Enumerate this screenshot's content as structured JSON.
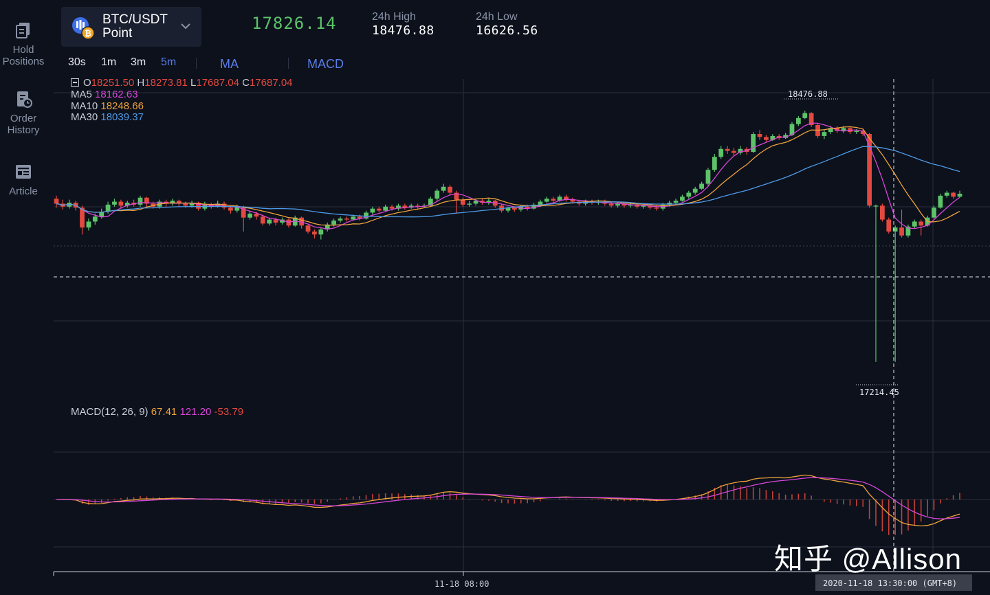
{
  "nav": [
    {
      "label": "Hold\nPositions",
      "icon": "hold-positions-icon"
    },
    {
      "label": "Order\nHistory",
      "icon": "order-history-icon"
    },
    {
      "label": "Article",
      "icon": "article-icon"
    }
  ],
  "symbol": {
    "name": "BTC/USDT",
    "sub": "Point"
  },
  "last_price": "17826.14",
  "stats": {
    "high_label": "24h High",
    "high_value": "18476.88",
    "low_label": "24h Low",
    "low_value": "16626.56"
  },
  "timeframes": [
    {
      "label": "30s",
      "active": false
    },
    {
      "label": "1m",
      "active": false
    },
    {
      "label": "3m",
      "active": false
    },
    {
      "label": "5m",
      "active": true
    }
  ],
  "indicators": [
    "MA",
    "MACD"
  ],
  "ohlc": {
    "o_label": "O",
    "o": "18251.50",
    "h_label": "H",
    "h": "18273.81",
    "l_label": "L",
    "l": "17687.04",
    "c_label": "C",
    "c": "17687.04"
  },
  "ma": [
    {
      "label": "MA5",
      "value": "18162.63",
      "color": "#d846d8"
    },
    {
      "label": "MA10",
      "value": "18248.66",
      "color": "#f0a23c"
    },
    {
      "label": "MA30",
      "value": "18039.37",
      "color": "#4f9ae6"
    }
  ],
  "macd": {
    "label": "MACD(12, 26, 9)",
    "dif": "67.41",
    "dea": "121.20",
    "hist": "-53.79"
  },
  "price_markers": {
    "high": "18476.88",
    "low": "17214.45"
  },
  "time_axis": {
    "tick_label": "11-18 08:00",
    "crosshair_label": "2020-11-18 13:30:00 (GMT+8)"
  },
  "watermark": "知乎 @Allison",
  "colors": {
    "up": "#5cc369",
    "down": "#e3493f",
    "ma5": "#d846d8",
    "ma10": "#f0a23c",
    "ma30": "#4f9ae6",
    "accent": "#5b7de8"
  },
  "chart_data": {
    "type": "candlestick",
    "interval": "5m",
    "price_range": [
      17100,
      18550
    ],
    "candles": [
      {
        "o": 18035,
        "c": 18010,
        "h": 18050,
        "l": 17990
      },
      {
        "o": 18010,
        "c": 17995,
        "h": 18030,
        "l": 17980
      },
      {
        "o": 17995,
        "c": 18015,
        "h": 18030,
        "l": 17985
      },
      {
        "o": 18015,
        "c": 17990,
        "h": 18025,
        "l": 17975
      },
      {
        "o": 17990,
        "c": 17890,
        "h": 18000,
        "l": 17855
      },
      {
        "o": 17890,
        "c": 17920,
        "h": 17935,
        "l": 17875
      },
      {
        "o": 17920,
        "c": 17945,
        "h": 17960,
        "l": 17905
      },
      {
        "o": 17945,
        "c": 17970,
        "h": 17985,
        "l": 17935
      },
      {
        "o": 17970,
        "c": 18005,
        "h": 18020,
        "l": 17960
      },
      {
        "o": 18005,
        "c": 18020,
        "h": 18035,
        "l": 17995
      },
      {
        "o": 18020,
        "c": 18000,
        "h": 18030,
        "l": 17985
      },
      {
        "o": 18000,
        "c": 18015,
        "h": 18025,
        "l": 17990
      },
      {
        "o": 18015,
        "c": 18005,
        "h": 18030,
        "l": 17995
      },
      {
        "o": 18005,
        "c": 18040,
        "h": 18050,
        "l": 17995
      },
      {
        "o": 18040,
        "c": 18010,
        "h": 18045,
        "l": 17995
      },
      {
        "o": 18010,
        "c": 17995,
        "h": 18020,
        "l": 17985
      },
      {
        "o": 17995,
        "c": 18020,
        "h": 18030,
        "l": 17985
      },
      {
        "o": 18020,
        "c": 18010,
        "h": 18030,
        "l": 17995
      },
      {
        "o": 18010,
        "c": 18025,
        "h": 18035,
        "l": 18000
      },
      {
        "o": 18025,
        "c": 18010,
        "h": 18030,
        "l": 17995
      },
      {
        "o": 18010,
        "c": 18000,
        "h": 18020,
        "l": 17990
      },
      {
        "o": 18000,
        "c": 18015,
        "h": 18025,
        "l": 17990
      },
      {
        "o": 18015,
        "c": 17985,
        "h": 18020,
        "l": 17975
      },
      {
        "o": 17985,
        "c": 18005,
        "h": 18020,
        "l": 17975
      },
      {
        "o": 18005,
        "c": 17995,
        "h": 18015,
        "l": 17985
      },
      {
        "o": 17995,
        "c": 18010,
        "h": 18025,
        "l": 17990
      },
      {
        "o": 18010,
        "c": 17990,
        "h": 18020,
        "l": 17980
      },
      {
        "o": 17990,
        "c": 17975,
        "h": 18000,
        "l": 17960
      },
      {
        "o": 17975,
        "c": 17995,
        "h": 18005,
        "l": 17965
      },
      {
        "o": 17995,
        "c": 17940,
        "h": 18000,
        "l": 17870
      },
      {
        "o": 17940,
        "c": 17960,
        "h": 17975,
        "l": 17930
      },
      {
        "o": 17960,
        "c": 17945,
        "h": 17970,
        "l": 17930
      },
      {
        "o": 17945,
        "c": 17910,
        "h": 17955,
        "l": 17900
      },
      {
        "o": 17910,
        "c": 17930,
        "h": 17940,
        "l": 17900
      },
      {
        "o": 17930,
        "c": 17915,
        "h": 17940,
        "l": 17900
      },
      {
        "o": 17915,
        "c": 17930,
        "h": 17940,
        "l": 17905
      },
      {
        "o": 17930,
        "c": 17900,
        "h": 17935,
        "l": 17890
      },
      {
        "o": 17900,
        "c": 17940,
        "h": 17950,
        "l": 17895
      },
      {
        "o": 17940,
        "c": 17900,
        "h": 17945,
        "l": 17885
      },
      {
        "o": 17900,
        "c": 17870,
        "h": 17905,
        "l": 17860
      },
      {
        "o": 17870,
        "c": 17855,
        "h": 17880,
        "l": 17835
      },
      {
        "o": 17855,
        "c": 17880,
        "h": 17890,
        "l": 17830
      },
      {
        "o": 17880,
        "c": 17905,
        "h": 17915,
        "l": 17870
      },
      {
        "o": 17905,
        "c": 17925,
        "h": 17935,
        "l": 17895
      },
      {
        "o": 17925,
        "c": 17935,
        "h": 17945,
        "l": 17915
      },
      {
        "o": 17935,
        "c": 17930,
        "h": 17945,
        "l": 17920
      },
      {
        "o": 17930,
        "c": 17945,
        "h": 17955,
        "l": 17925
      },
      {
        "o": 17945,
        "c": 17935,
        "h": 17955,
        "l": 17925
      },
      {
        "o": 17935,
        "c": 17965,
        "h": 17975,
        "l": 17930
      },
      {
        "o": 17965,
        "c": 17985,
        "h": 17995,
        "l": 17955
      },
      {
        "o": 17985,
        "c": 17975,
        "h": 17995,
        "l": 17965
      },
      {
        "o": 17975,
        "c": 17995,
        "h": 18005,
        "l": 17970
      },
      {
        "o": 17995,
        "c": 17985,
        "h": 18005,
        "l": 17975
      },
      {
        "o": 17985,
        "c": 18000,
        "h": 18010,
        "l": 17975
      },
      {
        "o": 18000,
        "c": 17990,
        "h": 18010,
        "l": 17980
      },
      {
        "o": 17990,
        "c": 18000,
        "h": 18010,
        "l": 17985
      },
      {
        "o": 18000,
        "c": 17995,
        "h": 18010,
        "l": 17985
      },
      {
        "o": 17995,
        "c": 18000,
        "h": 18010,
        "l": 17990
      },
      {
        "o": 18000,
        "c": 18035,
        "h": 18045,
        "l": 17995
      },
      {
        "o": 18035,
        "c": 18075,
        "h": 18085,
        "l": 18025
      },
      {
        "o": 18075,
        "c": 18095,
        "h": 18110,
        "l": 18065
      },
      {
        "o": 18095,
        "c": 18065,
        "h": 18105,
        "l": 18055
      },
      {
        "o": 18065,
        "c": 18030,
        "h": 18075,
        "l": 17960
      },
      {
        "o": 18030,
        "c": 18005,
        "h": 18040,
        "l": 17995
      },
      {
        "o": 18005,
        "c": 18010,
        "h": 18025,
        "l": 17995
      },
      {
        "o": 18010,
        "c": 18025,
        "h": 18035,
        "l": 18000
      },
      {
        "o": 18025,
        "c": 18015,
        "h": 18035,
        "l": 18005
      },
      {
        "o": 18015,
        "c": 18025,
        "h": 18035,
        "l": 18005
      },
      {
        "o": 18025,
        "c": 18000,
        "h": 18030,
        "l": 17990
      },
      {
        "o": 18000,
        "c": 17975,
        "h": 18010,
        "l": 17965
      },
      {
        "o": 17975,
        "c": 17990,
        "h": 17995,
        "l": 17965
      },
      {
        "o": 17990,
        "c": 17980,
        "h": 17995,
        "l": 17970
      },
      {
        "o": 17980,
        "c": 17995,
        "h": 18005,
        "l": 17970
      },
      {
        "o": 17995,
        "c": 17985,
        "h": 18005,
        "l": 17975
      },
      {
        "o": 17985,
        "c": 18005,
        "h": 18015,
        "l": 17980
      },
      {
        "o": 18005,
        "c": 18020,
        "h": 18030,
        "l": 17995
      },
      {
        "o": 18020,
        "c": 18035,
        "h": 18045,
        "l": 18015
      },
      {
        "o": 18035,
        "c": 18025,
        "h": 18045,
        "l": 18015
      },
      {
        "o": 18025,
        "c": 18045,
        "h": 18055,
        "l": 18020
      },
      {
        "o": 18045,
        "c": 18030,
        "h": 18055,
        "l": 18020
      },
      {
        "o": 18030,
        "c": 18020,
        "h": 18040,
        "l": 18010
      },
      {
        "o": 18020,
        "c": 18010,
        "h": 18030,
        "l": 18000
      },
      {
        "o": 18010,
        "c": 18020,
        "h": 18030,
        "l": 18000
      },
      {
        "o": 18020,
        "c": 18015,
        "h": 18030,
        "l": 18005
      },
      {
        "o": 18015,
        "c": 18020,
        "h": 18030,
        "l": 18005
      },
      {
        "o": 18020,
        "c": 18010,
        "h": 18030,
        "l": 18000
      },
      {
        "o": 18010,
        "c": 18000,
        "h": 18020,
        "l": 17990
      },
      {
        "o": 18000,
        "c": 18010,
        "h": 18020,
        "l": 17990
      },
      {
        "o": 18010,
        "c": 18000,
        "h": 18015,
        "l": 17990
      },
      {
        "o": 18000,
        "c": 18005,
        "h": 18015,
        "l": 17990
      },
      {
        "o": 18005,
        "c": 17995,
        "h": 18015,
        "l": 17985
      },
      {
        "o": 17995,
        "c": 18000,
        "h": 18010,
        "l": 17985
      },
      {
        "o": 18000,
        "c": 17990,
        "h": 18005,
        "l": 17980
      },
      {
        "o": 17990,
        "c": 17985,
        "h": 18000,
        "l": 17975
      },
      {
        "o": 17985,
        "c": 18005,
        "h": 18015,
        "l": 17975
      },
      {
        "o": 18005,
        "c": 18015,
        "h": 18025,
        "l": 17995
      },
      {
        "o": 18015,
        "c": 18025,
        "h": 18035,
        "l": 18005
      },
      {
        "o": 18025,
        "c": 18045,
        "h": 18055,
        "l": 18020
      },
      {
        "o": 18045,
        "c": 18065,
        "h": 18075,
        "l": 18035
      },
      {
        "o": 18065,
        "c": 18085,
        "h": 18095,
        "l": 18055
      },
      {
        "o": 18085,
        "c": 18110,
        "h": 18120,
        "l": 18080
      },
      {
        "o": 18110,
        "c": 18180,
        "h": 18190,
        "l": 18100
      },
      {
        "o": 18180,
        "c": 18245,
        "h": 18260,
        "l": 18170
      },
      {
        "o": 18245,
        "c": 18285,
        "h": 18300,
        "l": 18235
      },
      {
        "o": 18285,
        "c": 18275,
        "h": 18300,
        "l": 18260
      },
      {
        "o": 18275,
        "c": 18265,
        "h": 18290,
        "l": 18250
      },
      {
        "o": 18265,
        "c": 18285,
        "h": 18300,
        "l": 18255
      },
      {
        "o": 18285,
        "c": 18270,
        "h": 18295,
        "l": 18255
      },
      {
        "o": 18270,
        "c": 18360,
        "h": 18370,
        "l": 18265
      },
      {
        "o": 18360,
        "c": 18345,
        "h": 18380,
        "l": 18330
      },
      {
        "o": 18345,
        "c": 18330,
        "h": 18355,
        "l": 18320
      },
      {
        "o": 18330,
        "c": 18350,
        "h": 18360,
        "l": 18325
      },
      {
        "o": 18350,
        "c": 18340,
        "h": 18360,
        "l": 18330
      },
      {
        "o": 18340,
        "c": 18355,
        "h": 18365,
        "l": 18335
      },
      {
        "o": 18355,
        "c": 18410,
        "h": 18420,
        "l": 18350
      },
      {
        "o": 18410,
        "c": 18440,
        "h": 18450,
        "l": 18400
      },
      {
        "o": 18440,
        "c": 18465,
        "h": 18477,
        "l": 18435
      },
      {
        "o": 18465,
        "c": 18405,
        "h": 18470,
        "l": 18395
      },
      {
        "o": 18405,
        "c": 18350,
        "h": 18410,
        "l": 18340
      },
      {
        "o": 18350,
        "c": 18370,
        "h": 18380,
        "l": 18335
      },
      {
        "o": 18370,
        "c": 18390,
        "h": 18400,
        "l": 18360
      },
      {
        "o": 18390,
        "c": 18375,
        "h": 18400,
        "l": 18365
      },
      {
        "o": 18375,
        "c": 18390,
        "h": 18400,
        "l": 18365
      },
      {
        "o": 18390,
        "c": 18370,
        "h": 18395,
        "l": 18360
      },
      {
        "o": 18370,
        "c": 18375,
        "h": 18385,
        "l": 18360
      },
      {
        "o": 18375,
        "c": 18360,
        "h": 18385,
        "l": 18350
      },
      {
        "o": 18360,
        "c": 18000,
        "h": 18365,
        "l": 17990
      },
      {
        "o": 18000,
        "c": 18000,
        "h": 18005,
        "l": 17215
      },
      {
        "o": 18000,
        "c": 17930,
        "h": 18010,
        "l": 17920
      },
      {
        "o": 17930,
        "c": 17870,
        "h": 17940,
        "l": 17860
      },
      {
        "o": 17870,
        "c": 17890,
        "h": 17900,
        "l": 17215
      },
      {
        "o": 17890,
        "c": 17850,
        "h": 17980,
        "l": 17840
      },
      {
        "o": 17850,
        "c": 17895,
        "h": 17905,
        "l": 17840
      },
      {
        "o": 17895,
        "c": 17920,
        "h": 17930,
        "l": 17885
      },
      {
        "o": 17920,
        "c": 17900,
        "h": 17930,
        "l": 17850
      },
      {
        "o": 17900,
        "c": 17940,
        "h": 17950,
        "l": 17895
      },
      {
        "o": 17940,
        "c": 17990,
        "h": 18000,
        "l": 17935
      },
      {
        "o": 17990,
        "c": 18050,
        "h": 18060,
        "l": 17985
      },
      {
        "o": 18050,
        "c": 18065,
        "h": 18075,
        "l": 18040
      },
      {
        "o": 18065,
        "c": 18045,
        "h": 18070,
        "l": 18035
      },
      {
        "o": 18045,
        "c": 18060,
        "h": 18075,
        "l": 18040
      }
    ],
    "macd_range": [
      -240,
      310
    ]
  }
}
